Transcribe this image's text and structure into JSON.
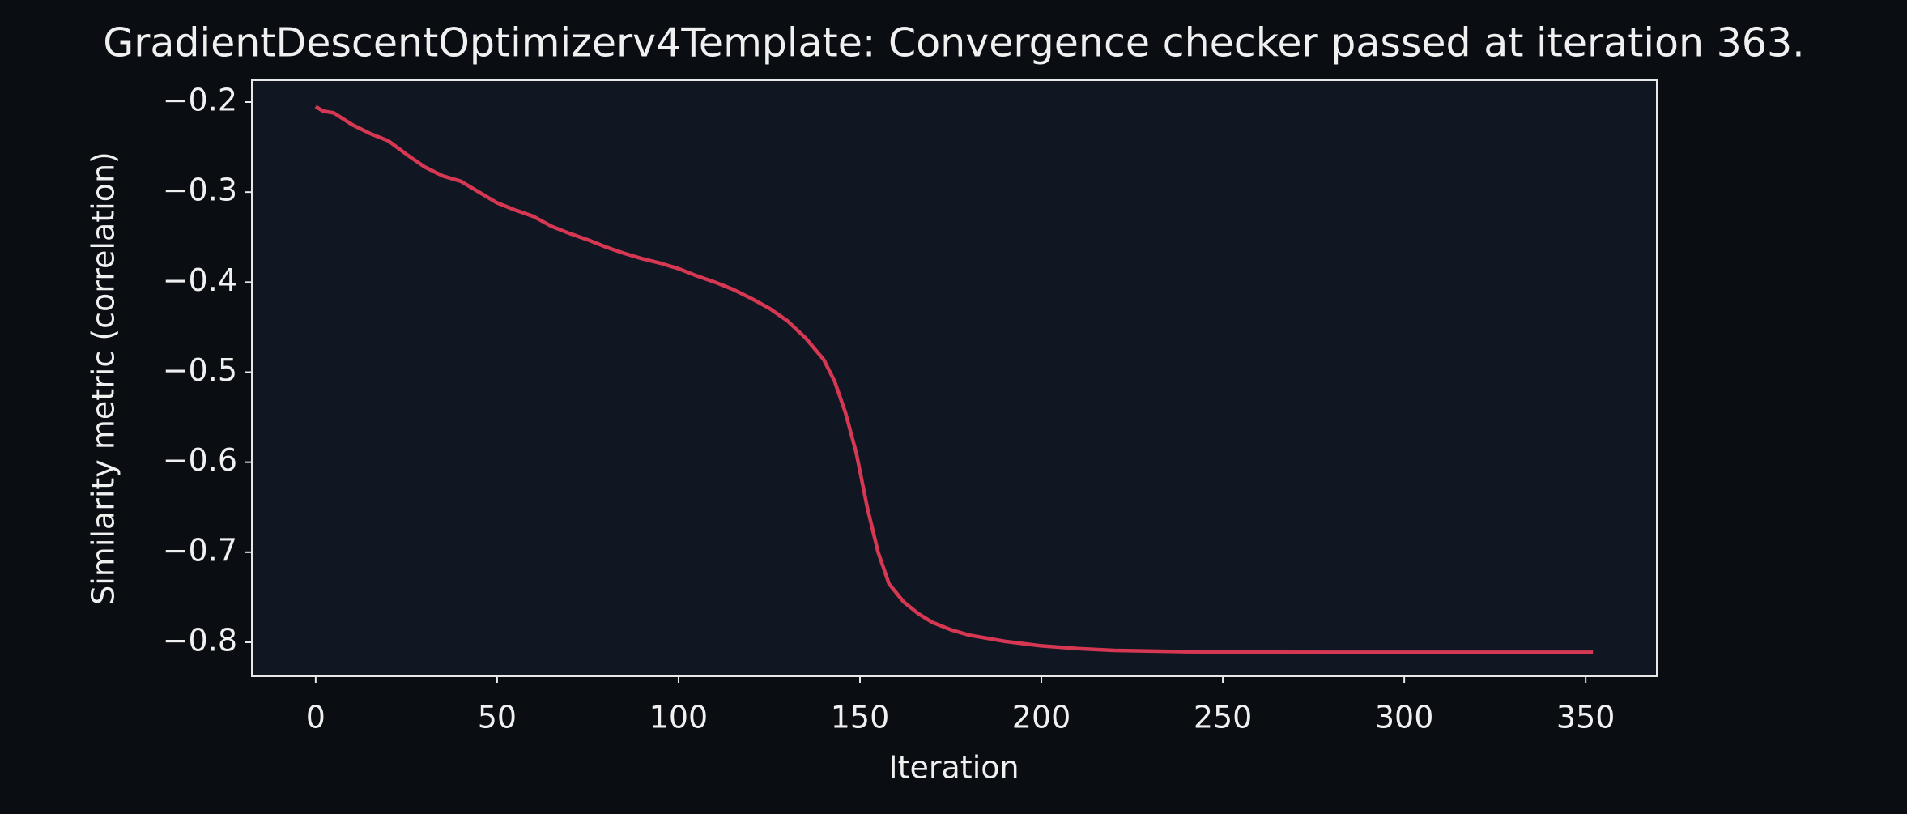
{
  "chart_data": {
    "type": "line",
    "title": "GradientDescentOptimizerv4Template: Convergence checker passed at iteration 363.",
    "x_label": "Iteration",
    "y_label": "Similarity metric (correlation)",
    "x": [
      0,
      2,
      5,
      10,
      15,
      20,
      25,
      30,
      35,
      40,
      45,
      50,
      55,
      60,
      65,
      70,
      75,
      80,
      85,
      90,
      95,
      100,
      105,
      110,
      115,
      120,
      125,
      130,
      135,
      140,
      143,
      146,
      149,
      152,
      155,
      158,
      162,
      166,
      170,
      175,
      180,
      190,
      200,
      210,
      220,
      240,
      260,
      300,
      352
    ],
    "series": [
      {
        "name": "metric",
        "color": "#d63854",
        "values": [
          -0.205,
          -0.21,
          -0.212,
          -0.225,
          -0.235,
          -0.243,
          -0.258,
          -0.272,
          -0.282,
          -0.288,
          -0.3,
          -0.312,
          -0.32,
          -0.327,
          -0.338,
          -0.346,
          -0.353,
          -0.361,
          -0.368,
          -0.374,
          -0.379,
          -0.385,
          -0.393,
          -0.4,
          -0.408,
          -0.418,
          -0.429,
          -0.443,
          -0.462,
          -0.486,
          -0.51,
          -0.545,
          -0.59,
          -0.65,
          -0.7,
          -0.735,
          -0.755,
          -0.768,
          -0.778,
          -0.786,
          -0.792,
          -0.799,
          -0.804,
          -0.807,
          -0.809,
          -0.8105,
          -0.811,
          -0.8112,
          -0.8112
        ]
      }
    ],
    "xlim": [
      -17.6,
      369.6
    ],
    "ylim": [
      -0.8378,
      -0.1757
    ],
    "xticks": [
      0,
      50,
      100,
      150,
      200,
      250,
      300,
      350
    ],
    "yticks": [
      {
        "value": -0.2,
        "label": "−0.2"
      },
      {
        "value": -0.3,
        "label": "−0.3"
      },
      {
        "value": -0.4,
        "label": "−0.4"
      },
      {
        "value": -0.5,
        "label": "−0.5"
      },
      {
        "value": -0.6,
        "label": "−0.6"
      },
      {
        "value": -0.7,
        "label": "−0.7"
      },
      {
        "value": -0.8,
        "label": "−0.8"
      }
    ],
    "grid": false
  }
}
